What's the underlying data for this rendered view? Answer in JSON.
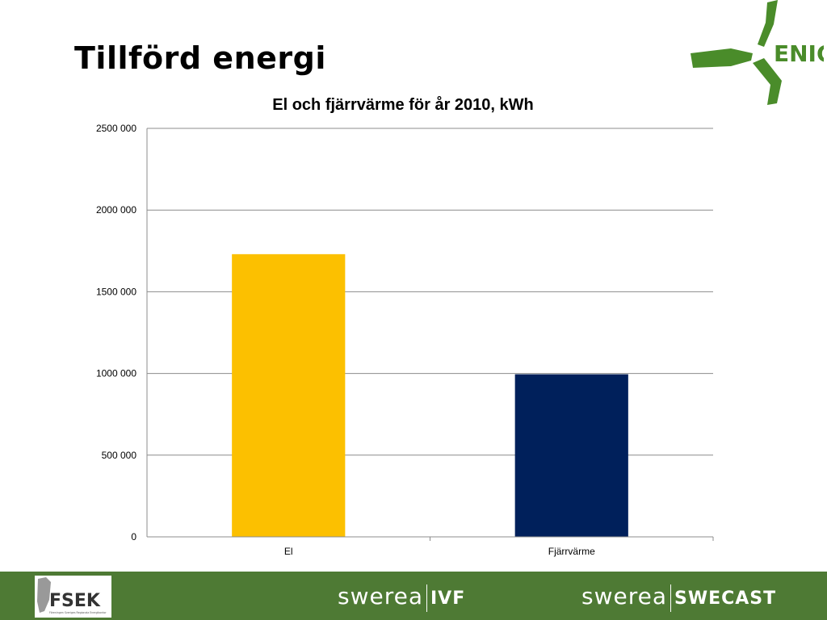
{
  "slide": {
    "title": "Tillförd energi"
  },
  "logos": {
    "top_right": {
      "text": "ENIG",
      "color": "#4a8c2a"
    },
    "footer_left": {
      "text": "FSEK",
      "subtext": "Föreningen Sveriges Regionala Energikontor"
    },
    "footer_middle": {
      "word": "swerea",
      "unit": "IVF"
    },
    "footer_right": {
      "word": "swerea",
      "unit": "SWECAST"
    }
  },
  "colors": {
    "footer": "#4e7a34",
    "el": "#fcc000",
    "fjarrvarme": "#00205b",
    "grid": "#8c8c8c"
  },
  "chart_data": {
    "type": "bar",
    "title": "El och fjärrvärme för år 2010, kWh",
    "categories": [
      "El",
      "Fjärrvärme"
    ],
    "values": [
      1730000,
      995000
    ],
    "bar_colors": [
      "#fcc000",
      "#00205b"
    ],
    "ylim": [
      0,
      2500000
    ],
    "yticks": [
      0,
      500000,
      1000000,
      1500000,
      2000000,
      2500000
    ],
    "ytick_labels": [
      "0",
      "500 000",
      "1000 000",
      "1500 000",
      "2000 000",
      "2500 000"
    ],
    "grid": true,
    "legend": "none"
  }
}
